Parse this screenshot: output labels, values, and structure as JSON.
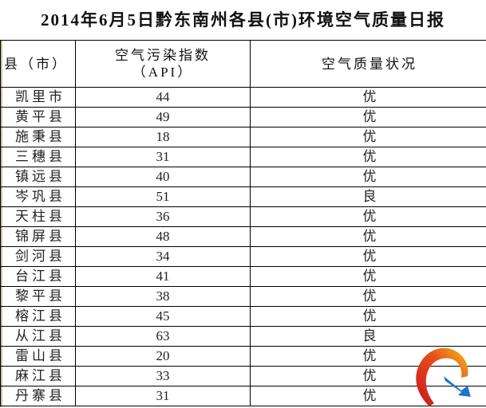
{
  "title": "2014年6月5日黔东南州各县(市)环境空气质量日报",
  "headers": {
    "county": "县（市）",
    "api_line1": "空气污染指数",
    "api_line2": "（API）",
    "quality": "空气质量状况"
  },
  "rows": [
    {
      "county": "凯里市",
      "api": "44",
      "quality": "优"
    },
    {
      "county": "黄平县",
      "api": "49",
      "quality": "优"
    },
    {
      "county": "施秉县",
      "api": "18",
      "quality": "优"
    },
    {
      "county": "三穗县",
      "api": "31",
      "quality": "优"
    },
    {
      "county": "镇远县",
      "api": "40",
      "quality": "优"
    },
    {
      "county": "岑巩县",
      "api": "51",
      "quality": "良"
    },
    {
      "county": "天柱县",
      "api": "36",
      "quality": "优"
    },
    {
      "county": "锦屏县",
      "api": "48",
      "quality": "优"
    },
    {
      "county": "剑河县",
      "api": "34",
      "quality": "优"
    },
    {
      "county": "台江县",
      "api": "41",
      "quality": "优"
    },
    {
      "county": "黎平县",
      "api": "38",
      "quality": "优"
    },
    {
      "county": "榕江县",
      "api": "45",
      "quality": "优"
    },
    {
      "county": "从江县",
      "api": "63",
      "quality": "良"
    },
    {
      "county": "雷山县",
      "api": "20",
      "quality": "优"
    },
    {
      "county": "麻江县",
      "api": "33",
      "quality": "优"
    },
    {
      "county": "丹寨县",
      "api": "31",
      "quality": "优"
    }
  ],
  "logo_icon": "swirl-arrow-logo"
}
